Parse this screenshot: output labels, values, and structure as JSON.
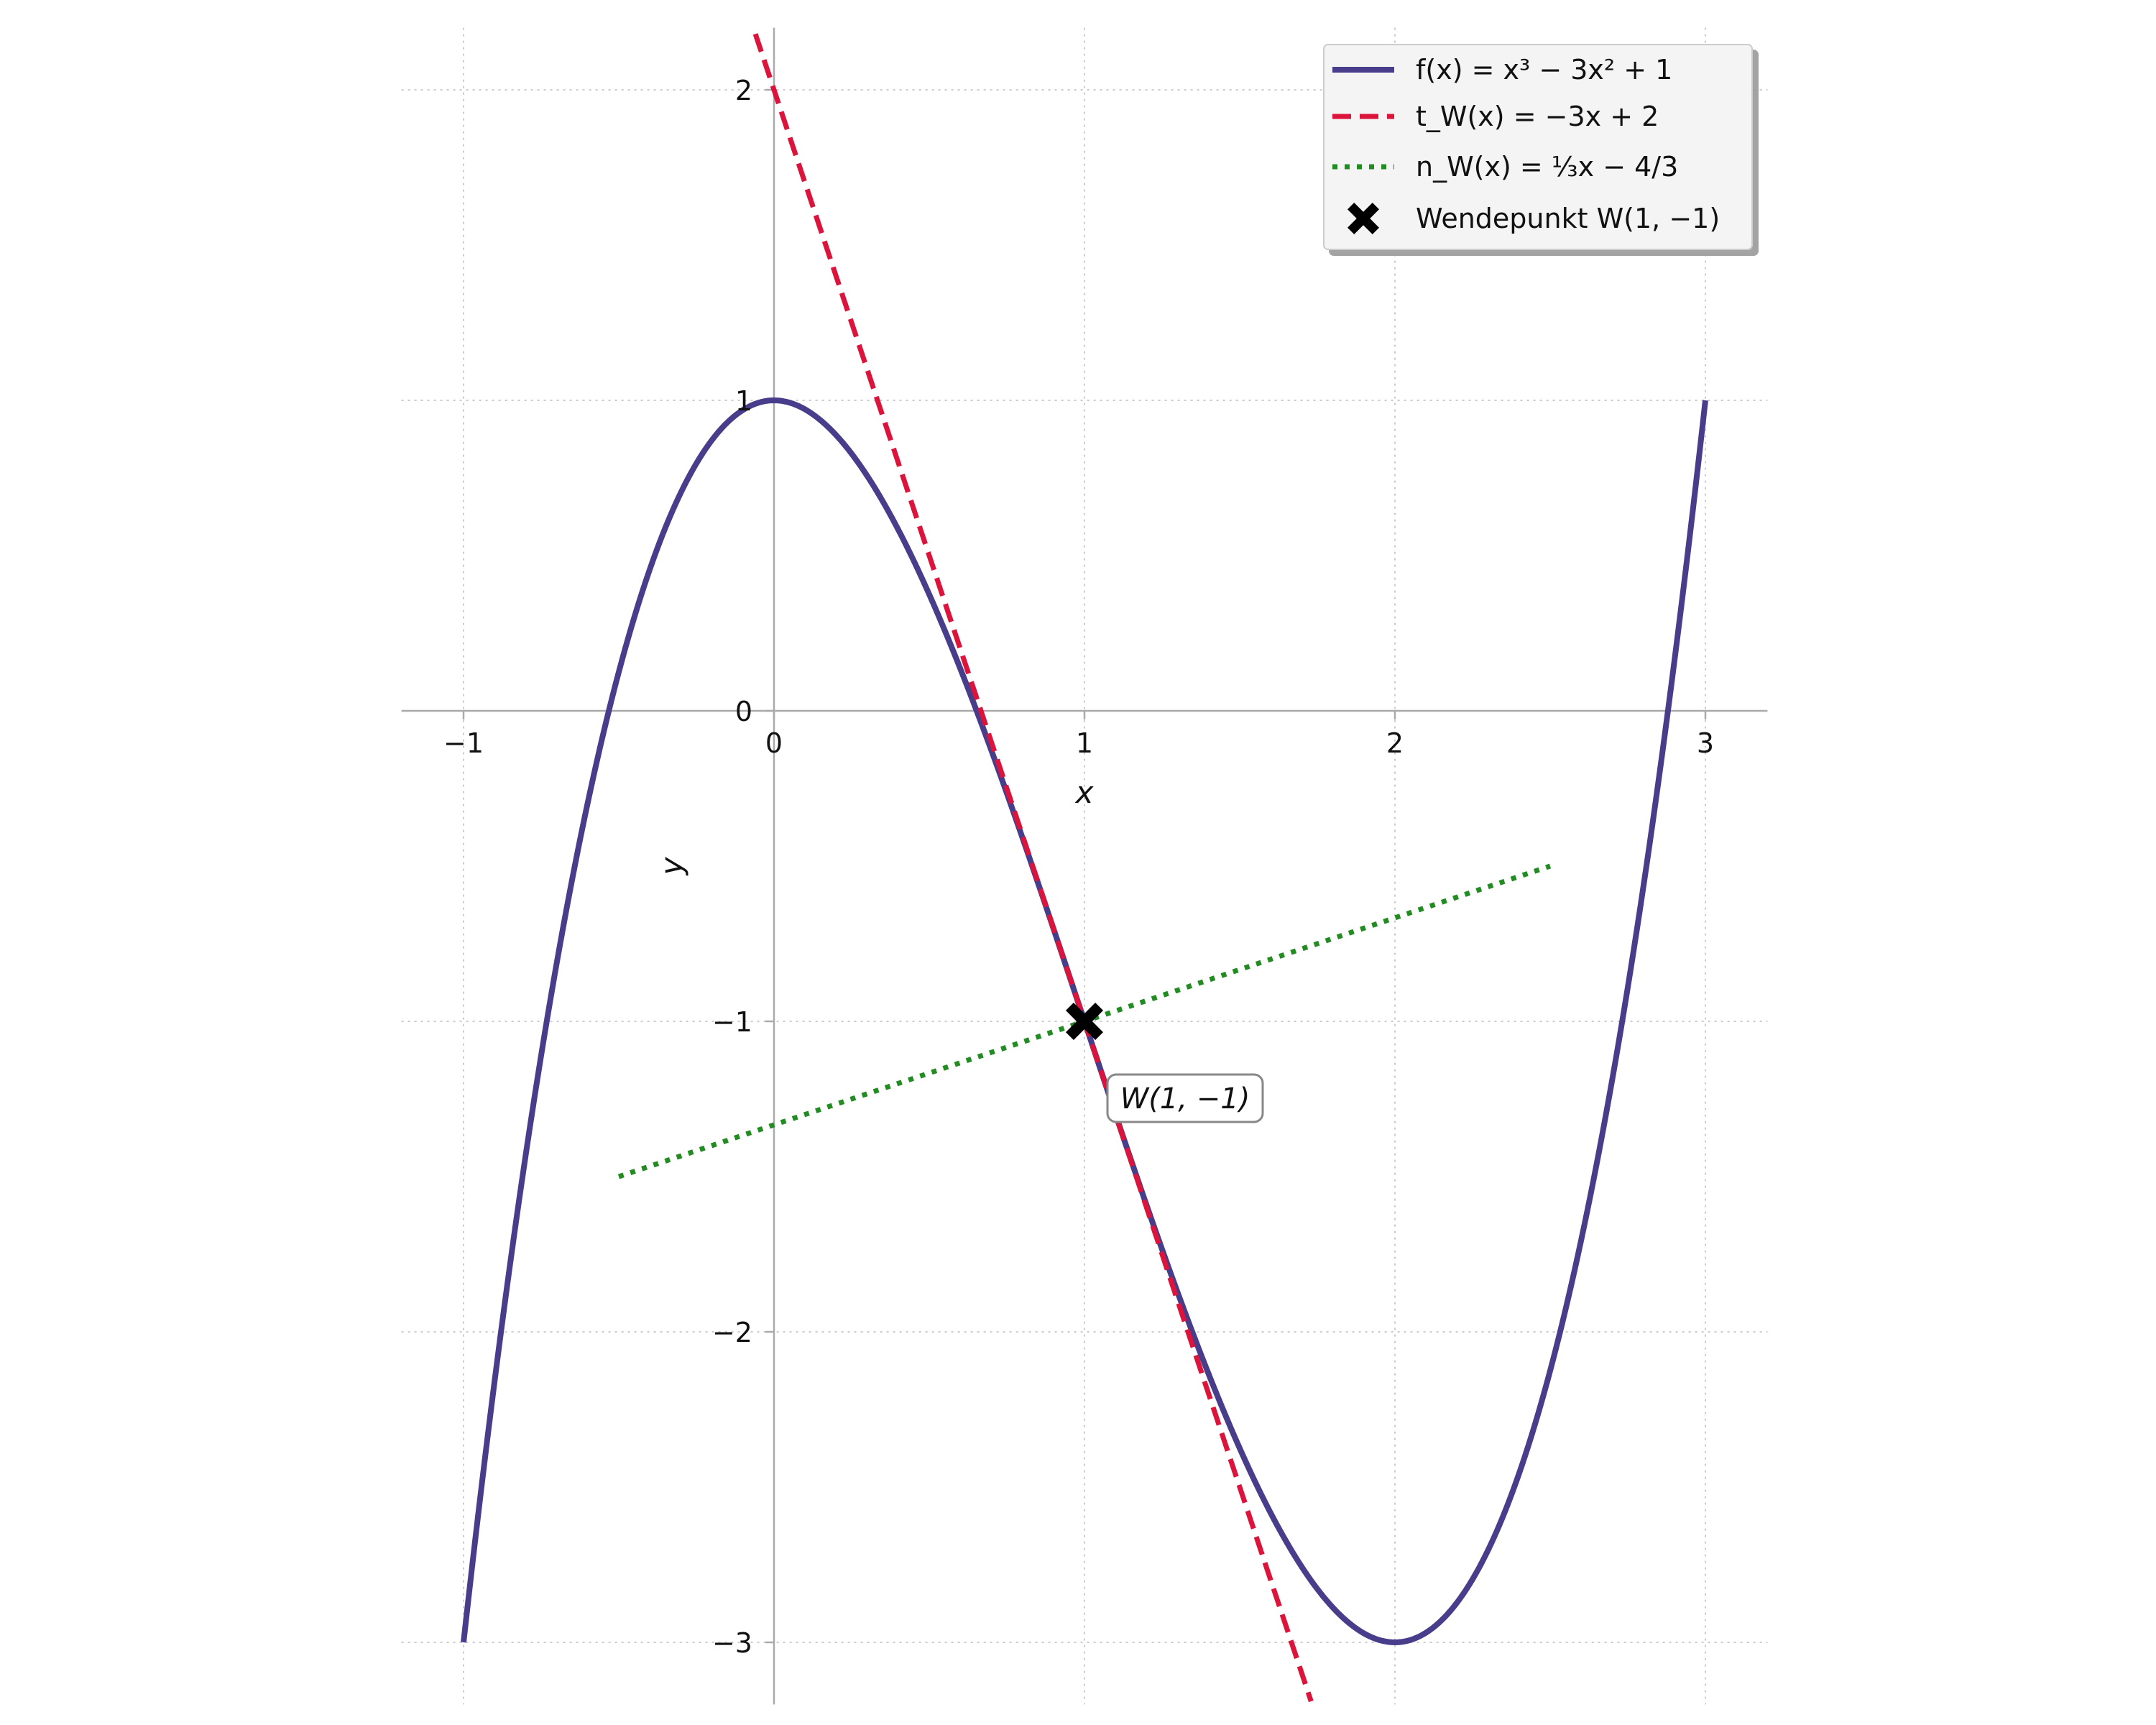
{
  "chart_data": {
    "type": "line",
    "xlabel": "x",
    "ylabel": "y",
    "xlim": [
      -1.2,
      3.2
    ],
    "ylim": [
      -3.2,
      2.2
    ],
    "xticks": [
      -1,
      0,
      1,
      2,
      3
    ],
    "xtick_labels": [
      "−1",
      "0",
      "1",
      "2",
      "3"
    ],
    "yticks": [
      -3,
      -2,
      -1,
      0,
      1,
      2
    ],
    "ytick_labels": [
      "−3",
      "−2",
      "−1",
      "0",
      "1",
      "2"
    ],
    "grid": true,
    "grid_style": "dotted",
    "legend_position": "top-right",
    "colors": {
      "f": "#483d8b",
      "tangent": "#dc143c",
      "normal": "#228b22",
      "point": "#000000",
      "grid": "#cccccc",
      "axis": "#aaaaaa"
    },
    "series": [
      {
        "id": "f",
        "name": "f(x) = x³ − 3x² + 1",
        "style": "solid",
        "x": [
          -1.0,
          -0.8,
          -0.6,
          -0.4,
          -0.2,
          0.0,
          0.2,
          0.4,
          0.6,
          0.8,
          1.0,
          1.2,
          1.4,
          1.6,
          1.8,
          2.0,
          2.2,
          2.4,
          2.6,
          2.8,
          3.0
        ],
        "y": [
          -3.0,
          -1.432,
          -0.296,
          0.456,
          0.872,
          1.0,
          0.888,
          0.584,
          0.136,
          -0.408,
          -1.0,
          -1.592,
          -2.136,
          -2.584,
          -2.888,
          -3.0,
          -2.872,
          -2.456,
          -1.704,
          -0.568,
          1.0
        ]
      },
      {
        "id": "tangent",
        "name": "t_W(x) = −3x + 2",
        "style": "dashed",
        "x": [
          -0.06,
          1.73
        ],
        "y": [
          2.18,
          -3.19
        ]
      },
      {
        "id": "normal",
        "name": "n_W(x) = 1/3 x − 4/3",
        "style": "dotted",
        "x": [
          -0.5,
          2.5
        ],
        "y": [
          -1.5,
          -0.5
        ]
      }
    ],
    "points": [
      {
        "id": "W",
        "name": "Wendepunkt W(1, −1)",
        "x": 1,
        "y": -1,
        "marker": "X"
      }
    ],
    "annotations": [
      {
        "text": "W(1, −1)",
        "x": 1,
        "y": -1
      }
    ],
    "legend": [
      {
        "id": "f",
        "text": "f(x) = x³ − 3x² + 1"
      },
      {
        "id": "tangent",
        "text": "t_W(x) = −3x + 2"
      },
      {
        "id": "normal",
        "text": "n_W(x) = ⅓x − 4/3"
      },
      {
        "id": "W",
        "text": "Wendepunkt W(1, −1)"
      }
    ]
  }
}
